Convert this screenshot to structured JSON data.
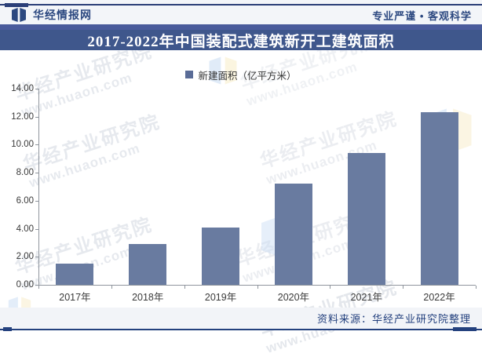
{
  "header": {
    "brand": "华经情报网",
    "slogan": "专业严谨 • 客观科学"
  },
  "title": "2017-2022年中国装配式建筑新开工建筑面积",
  "legend": {
    "label": "新建面积（亿平方米）"
  },
  "footer": {
    "source": "资料来源：华经产业研究院整理"
  },
  "watermark": {
    "line1": "华经产业研究院",
    "line2": "www.huaon.com"
  },
  "colors": {
    "banner_blue": "#3f578c",
    "bar_blue": "#697ba0",
    "line_navy": "#24417e",
    "text_navy": "#2c4880"
  },
  "chart_data": {
    "type": "bar",
    "title": "2017-2022年中国装配式建筑新开工建筑面积",
    "categories": [
      "2017年",
      "2018年",
      "2019年",
      "2020年",
      "2021年",
      "2022年"
    ],
    "values": [
      1.5,
      2.9,
      4.1,
      7.2,
      9.4,
      12.3
    ],
    "series_name": "新建面积（亿平方米）",
    "xlabel": "",
    "ylabel": "新建面积（亿平方米）",
    "ylim": [
      0,
      14
    ],
    "ytick_step": 2,
    "ytick_format": "two_decimals",
    "grid": false,
    "legend_position": "top-center"
  }
}
